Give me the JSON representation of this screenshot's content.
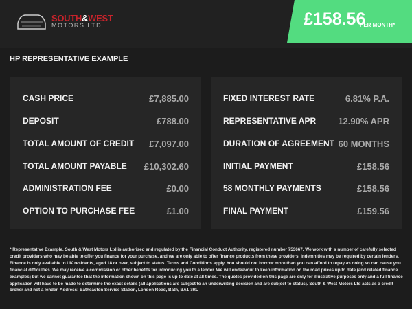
{
  "header": {
    "logo": {
      "line1_a": "SOUTH",
      "line1_amp": "&",
      "line1_b": "WEST",
      "line2": "MOTORS LTD"
    },
    "monthly_price": "£158.56",
    "per_month_label": "PER MONTH*",
    "accent_color": "#53dc80"
  },
  "section_title": "HP REPRESENTATIVE EXAMPLE",
  "left_panel": [
    {
      "label": "CASH PRICE",
      "value": "£7,885.00"
    },
    {
      "label": "DEPOSIT",
      "value": "£788.00"
    },
    {
      "label": "TOTAL AMOUNT OF CREDIT",
      "value": "£7,097.00"
    },
    {
      "label": "TOTAL AMOUNT PAYABLE",
      "value": "£10,302.60"
    },
    {
      "label": "ADMINISTRATION FEE",
      "value": "£0.00"
    },
    {
      "label": "OPTION TO PURCHASE FEE",
      "value": "£1.00"
    }
  ],
  "right_panel": [
    {
      "label": "FIXED INTEREST RATE",
      "value": "6.81% P.A."
    },
    {
      "label": "REPRESENTATIVE APR",
      "value": "12.90% APR"
    },
    {
      "label": "DURATION OF AGREEMENT",
      "value": "60 MONTHS"
    },
    {
      "label": "INITIAL PAYMENT",
      "value": "£158.56"
    },
    {
      "label": "58 MONTHLY PAYMENTS",
      "value": "£158.56"
    },
    {
      "label": "FINAL PAYMENT",
      "value": "£159.56"
    }
  ],
  "disclaimer": "* Representative Example. South & West Motors Ltd is authorised and regulated by the Financial Conduct Authority, registered number 753667. We work with a number of carefully selected credit providers who may be able to offer you finance for your purchase, and we are only able to offer finance products from these providers. Indemnities may be required by certain lenders. Finance is only available to UK residents, aged 18 or over, subject to status. Terms and Conditions apply. You should not borrow more than you can afford to repay as doing so can cause you financial difficulties. We may receive a commission or other benefits for introducing you to a lender. We will endeavour to keep information on the road prices up to date (and related finance examples) but we cannot guarantee that the information shown on this page is up to date at all times. The quotes provided on this page are only for illustrative purposes only and a full finance application will have to be made to determine the exact details (all applications are subject to an underwriting decision and are subject to status). South & West Motors Ltd acts as a credit broker and not a lender. Address: Batheaston Service Station, London Road, Bath, BA1 7RL"
}
